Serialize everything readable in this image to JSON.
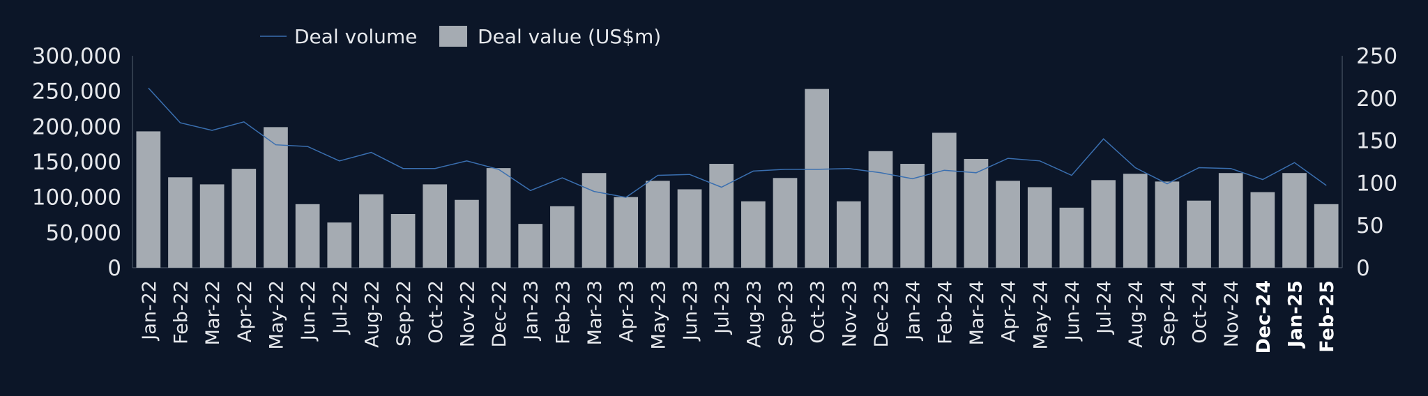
{
  "chart_data": {
    "type": "bar",
    "categories": [
      "Jan-22",
      "Feb-22",
      "Mar-22",
      "Apr-22",
      "May-22",
      "Jun-22",
      "Jul-22",
      "Aug-22",
      "Sep-22",
      "Oct-22",
      "Nov-22",
      "Dec-22",
      "Jan-23",
      "Feb-23",
      "Mar-23",
      "Apr-23",
      "May-23",
      "Jun-23",
      "Jul-23",
      "Aug-23",
      "Sep-23",
      "Oct-23",
      "Nov-23",
      "Dec-23",
      "Jan-24",
      "Feb-24",
      "Mar-24",
      "Apr-24",
      "May-24",
      "Jun-24",
      "Jul-24",
      "Aug-24",
      "Sep-24",
      "Oct-24",
      "Nov-24",
      "Dec-24",
      "Jan-25",
      "Feb-25"
    ],
    "bold_categories": [
      "Dec-24",
      "Jan-25",
      "Feb-25"
    ],
    "series": [
      {
        "name": "Deal value (US$m)",
        "type": "bar",
        "axis": "left",
        "color": "#a5abb2",
        "values": [
          193000,
          128000,
          118000,
          140000,
          199000,
          90000,
          64000,
          104000,
          76000,
          118000,
          96000,
          141000,
          62000,
          87000,
          134000,
          100000,
          123000,
          111000,
          147000,
          94000,
          127000,
          253000,
          94000,
          165000,
          147000,
          191000,
          154000,
          123000,
          114000,
          85000,
          124000,
          133000,
          122000,
          95000,
          134000,
          107000,
          134000,
          90000
        ]
      },
      {
        "name": "Deal volume",
        "type": "line",
        "axis": "right",
        "color": "#3a6fb0",
        "values": [
          212,
          171,
          162,
          172,
          145,
          143,
          126,
          136,
          117,
          117,
          126,
          116,
          91,
          106,
          90,
          83,
          109,
          110,
          95,
          114,
          116,
          116,
          117,
          112,
          105,
          115,
          112,
          129,
          126,
          109,
          152,
          118,
          99,
          118,
          117,
          104,
          124,
          97
        ]
      }
    ],
    "y_left": {
      "min": 0,
      "max": 300000,
      "ticks": [
        "0",
        "50,000",
        "100,000",
        "150,000",
        "200,000",
        "250,000",
        "300,000"
      ]
    },
    "y_right": {
      "min": 0,
      "max": 250,
      "ticks": [
        "0",
        "50",
        "100",
        "150",
        "200",
        "250"
      ]
    },
    "grid": false,
    "legend_position": "top-left"
  }
}
